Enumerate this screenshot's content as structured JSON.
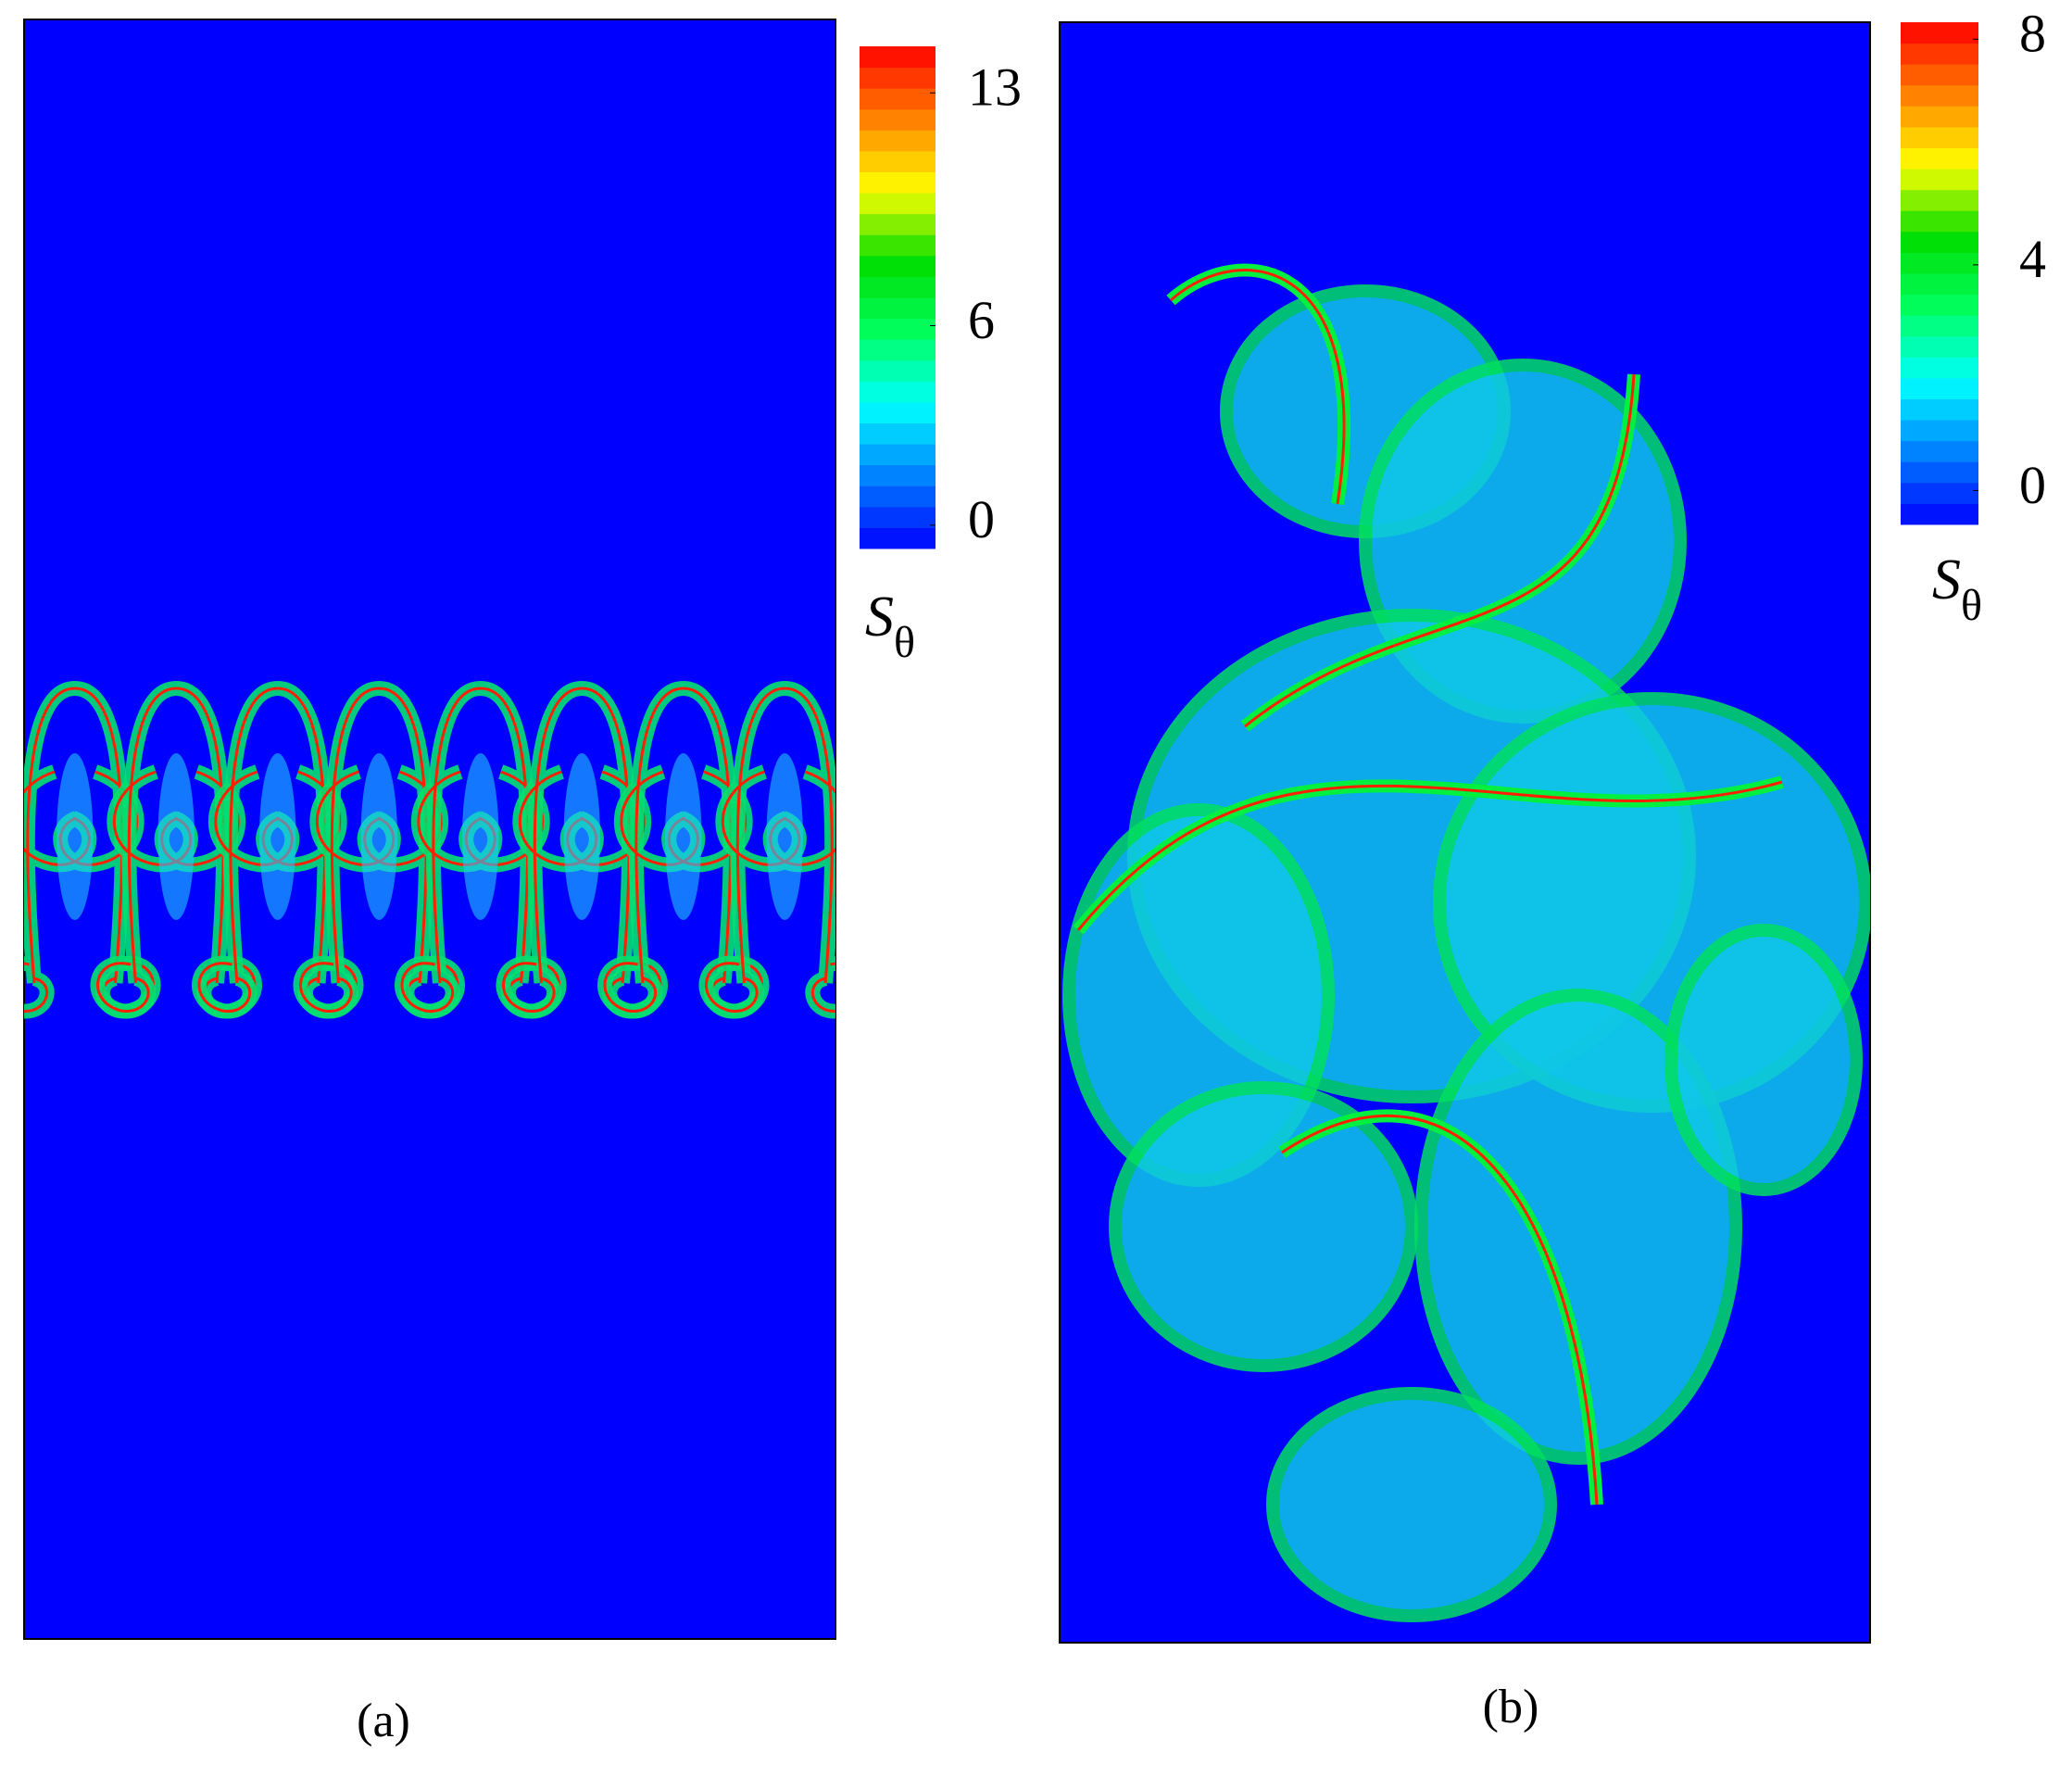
{
  "chart_data": [
    {
      "type": "contour",
      "panel_label": "(a)",
      "background": "#0000ff",
      "colorbar": {
        "label": "S",
        "label_subscript": "θ",
        "clim": [
          -0.7,
          14.4
        ],
        "ticks": [
          0,
          6,
          13
        ],
        "colormap": [
          "#0000ff",
          "#0080ff",
          "#00ffff",
          "#00ff60",
          "#00dd00",
          "#ffff00",
          "#ff8000",
          "#ff0000"
        ]
      }
    },
    {
      "type": "contour",
      "panel_label": "(b)",
      "background": "#0000ff",
      "colorbar": {
        "label": "S",
        "label_subscript": "θ",
        "clim": [
          -0.6,
          8.3
        ],
        "ticks": [
          0,
          4,
          8
        ],
        "colormap": [
          "#0000ff",
          "#0080ff",
          "#00ffff",
          "#00ff60",
          "#00dd00",
          "#ffff00",
          "#ff8000",
          "#ff0000"
        ]
      }
    }
  ]
}
